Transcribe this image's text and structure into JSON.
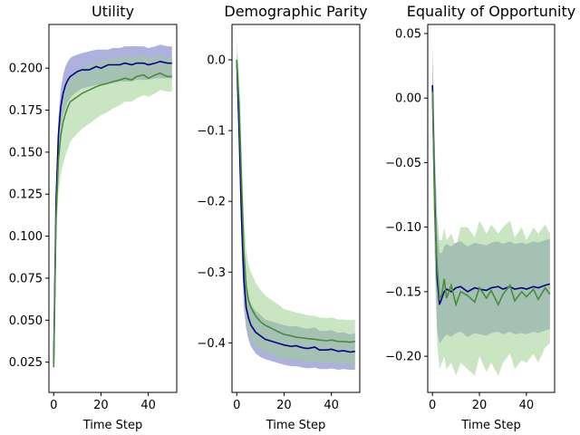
{
  "colors": {
    "blue_line": "#00008b",
    "blue_band": "#8c8fd0",
    "green_line": "#4a8a3a",
    "green_band": "#9fcf8f",
    "axis": "#000000"
  },
  "chart_data": [
    {
      "type": "line",
      "title": "Utility",
      "xlabel": "Time Step",
      "ylabel": "",
      "xlim": [
        -2,
        52
      ],
      "ylim": [
        0.007,
        0.226
      ],
      "xticks": [
        0,
        20,
        40
      ],
      "yticks": [
        0.025,
        0.05,
        0.075,
        0.1,
        0.125,
        0.15,
        0.175,
        0.2
      ],
      "ytick_labels": [
        "0.025",
        "0.050",
        "0.075",
        "0.100",
        "0.125",
        "0.150",
        "0.175",
        "0.200"
      ],
      "grid": false,
      "series": [
        {
          "color": "blue",
          "x": [
            0,
            1,
            2,
            3,
            4,
            5,
            6,
            7,
            8,
            10,
            12,
            15,
            18,
            20,
            23,
            25,
            28,
            30,
            33,
            35,
            38,
            40,
            43,
            45,
            48,
            50
          ],
          "y": [
            0.024,
            0.12,
            0.16,
            0.177,
            0.185,
            0.19,
            0.193,
            0.195,
            0.196,
            0.198,
            0.199,
            0.199,
            0.201,
            0.2,
            0.202,
            0.202,
            0.202,
            0.203,
            0.202,
            0.203,
            0.203,
            0.202,
            0.203,
            0.204,
            0.203,
            0.203
          ],
          "lower": [
            0.015,
            0.11,
            0.15,
            0.165,
            0.172,
            0.176,
            0.18,
            0.182,
            0.184,
            0.186,
            0.188,
            0.189,
            0.19,
            0.19,
            0.191,
            0.191,
            0.192,
            0.192,
            0.192,
            0.193,
            0.193,
            0.193,
            0.194,
            0.194,
            0.194,
            0.194
          ],
          "upper": [
            0.032,
            0.13,
            0.17,
            0.188,
            0.196,
            0.201,
            0.204,
            0.206,
            0.207,
            0.208,
            0.209,
            0.21,
            0.211,
            0.211,
            0.211,
            0.212,
            0.212,
            0.213,
            0.213,
            0.213,
            0.213,
            0.212,
            0.213,
            0.214,
            0.213,
            0.213
          ]
        },
        {
          "color": "green",
          "x": [
            0,
            1,
            2,
            3,
            4,
            5,
            6,
            7,
            8,
            10,
            12,
            15,
            18,
            20,
            23,
            25,
            28,
            30,
            33,
            35,
            38,
            40,
            43,
            45,
            48,
            50
          ],
          "y": [
            0.022,
            0.11,
            0.145,
            0.16,
            0.168,
            0.173,
            0.177,
            0.18,
            0.181,
            0.183,
            0.185,
            0.187,
            0.189,
            0.19,
            0.191,
            0.192,
            0.193,
            0.194,
            0.193,
            0.195,
            0.196,
            0.194,
            0.196,
            0.197,
            0.195,
            0.195
          ],
          "lower": [
            0.018,
            0.095,
            0.125,
            0.137,
            0.143,
            0.148,
            0.152,
            0.156,
            0.158,
            0.161,
            0.164,
            0.167,
            0.17,
            0.172,
            0.174,
            0.176,
            0.178,
            0.18,
            0.18,
            0.182,
            0.184,
            0.183,
            0.185,
            0.187,
            0.186,
            0.186
          ],
          "upper": [
            0.028,
            0.125,
            0.16,
            0.177,
            0.185,
            0.19,
            0.193,
            0.196,
            0.197,
            0.199,
            0.2,
            0.202,
            0.203,
            0.204,
            0.205,
            0.206,
            0.206,
            0.207,
            0.206,
            0.207,
            0.208,
            0.206,
            0.207,
            0.208,
            0.206,
            0.206
          ]
        }
      ]
    },
    {
      "type": "line",
      "title": "Demographic Parity",
      "xlabel": "Time Step",
      "ylabel": "",
      "xlim": [
        -2,
        52
      ],
      "ylim": [
        -0.47,
        0.05
      ],
      "xticks": [
        0,
        20,
        40
      ],
      "yticks": [
        0.0,
        -0.1,
        -0.2,
        -0.3,
        -0.4
      ],
      "ytick_labels": [
        "0.0",
        "−0.1",
        "−0.2",
        "−0.3",
        "−0.4"
      ],
      "grid": false,
      "series": [
        {
          "color": "blue",
          "x": [
            0,
            1,
            2,
            3,
            4,
            5,
            6,
            8,
            10,
            12,
            15,
            18,
            20,
            23,
            25,
            28,
            30,
            33,
            35,
            38,
            40,
            43,
            45,
            48,
            50
          ],
          "y": [
            0.0,
            -0.1,
            -0.22,
            -0.31,
            -0.35,
            -0.365,
            -0.375,
            -0.385,
            -0.39,
            -0.395,
            -0.398,
            -0.401,
            -0.403,
            -0.405,
            -0.404,
            -0.407,
            -0.408,
            -0.406,
            -0.41,
            -0.41,
            -0.409,
            -0.412,
            -0.411,
            -0.413,
            -0.412
          ],
          "lower": [
            -0.01,
            -0.13,
            -0.26,
            -0.35,
            -0.38,
            -0.395,
            -0.405,
            -0.415,
            -0.42,
            -0.423,
            -0.426,
            -0.429,
            -0.431,
            -0.433,
            -0.433,
            -0.435,
            -0.436,
            -0.435,
            -0.437,
            -0.437,
            -0.436,
            -0.438,
            -0.437,
            -0.438,
            -0.438
          ],
          "upper": [
            0.01,
            -0.07,
            -0.18,
            -0.27,
            -0.32,
            -0.335,
            -0.345,
            -0.355,
            -0.36,
            -0.367,
            -0.37,
            -0.373,
            -0.375,
            -0.377,
            -0.376,
            -0.379,
            -0.38,
            -0.378,
            -0.383,
            -0.383,
            -0.382,
            -0.386,
            -0.385,
            -0.388,
            -0.386
          ]
        },
        {
          "color": "green",
          "x": [
            0,
            1,
            2,
            3,
            4,
            5,
            6,
            8,
            10,
            12,
            15,
            18,
            20,
            23,
            25,
            28,
            30,
            33,
            35,
            38,
            40,
            43,
            45,
            48,
            50
          ],
          "y": [
            0.0,
            -0.06,
            -0.17,
            -0.27,
            -0.32,
            -0.34,
            -0.35,
            -0.362,
            -0.37,
            -0.375,
            -0.38,
            -0.385,
            -0.388,
            -0.39,
            -0.392,
            -0.393,
            -0.394,
            -0.395,
            -0.396,
            -0.397,
            -0.396,
            -0.398,
            -0.398,
            -0.399,
            -0.398
          ],
          "lower": [
            -0.03,
            -0.1,
            -0.22,
            -0.32,
            -0.37,
            -0.385,
            -0.395,
            -0.405,
            -0.41,
            -0.413,
            -0.417,
            -0.42,
            -0.422,
            -0.423,
            -0.425,
            -0.425,
            -0.426,
            -0.427,
            -0.428,
            -0.428,
            -0.428,
            -0.429,
            -0.429,
            -0.43,
            -0.43
          ],
          "upper": [
            0.025,
            -0.02,
            -0.12,
            -0.22,
            -0.27,
            -0.29,
            -0.3,
            -0.315,
            -0.325,
            -0.333,
            -0.34,
            -0.347,
            -0.352,
            -0.355,
            -0.357,
            -0.359,
            -0.361,
            -0.362,
            -0.364,
            -0.365,
            -0.364,
            -0.367,
            -0.367,
            -0.368,
            -0.367
          ]
        }
      ]
    },
    {
      "type": "line",
      "title": "Equality of Opportunity",
      "xlabel": "Time Step",
      "ylabel": "",
      "xlim": [
        -2,
        52
      ],
      "ylim": [
        -0.228,
        0.057
      ],
      "xticks": [
        0,
        20,
        40
      ],
      "yticks": [
        0.05,
        0.0,
        -0.05,
        -0.1,
        -0.15,
        -0.2
      ],
      "ytick_labels": [
        "0.05",
        "0.00",
        "−0.05",
        "−0.10",
        "−0.15",
        "−0.20"
      ],
      "grid": false,
      "series": [
        {
          "color": "blue",
          "x": [
            0,
            1,
            2,
            3,
            4,
            5,
            6,
            8,
            10,
            12,
            15,
            18,
            20,
            23,
            25,
            28,
            30,
            33,
            35,
            38,
            40,
            43,
            45,
            48,
            50
          ],
          "y": [
            0.01,
            -0.08,
            -0.14,
            -0.16,
            -0.155,
            -0.15,
            -0.148,
            -0.15,
            -0.147,
            -0.146,
            -0.15,
            -0.147,
            -0.148,
            -0.149,
            -0.147,
            -0.146,
            -0.148,
            -0.146,
            -0.148,
            -0.147,
            -0.148,
            -0.146,
            -0.147,
            -0.145,
            -0.144
          ],
          "lower": [
            -0.02,
            -0.12,
            -0.18,
            -0.19,
            -0.188,
            -0.185,
            -0.183,
            -0.185,
            -0.182,
            -0.181,
            -0.185,
            -0.182,
            -0.183,
            -0.184,
            -0.182,
            -0.181,
            -0.183,
            -0.181,
            -0.183,
            -0.182,
            -0.183,
            -0.181,
            -0.182,
            -0.18,
            -0.179
          ],
          "upper": [
            0.04,
            -0.04,
            -0.1,
            -0.12,
            -0.12,
            -0.115,
            -0.113,
            -0.115,
            -0.112,
            -0.111,
            -0.115,
            -0.112,
            -0.113,
            -0.114,
            -0.112,
            -0.111,
            -0.113,
            -0.111,
            -0.113,
            -0.112,
            -0.113,
            -0.111,
            -0.112,
            -0.11,
            -0.109
          ]
        },
        {
          "color": "green",
          "x": [
            0,
            1,
            2,
            3,
            4,
            5,
            6,
            8,
            10,
            12,
            15,
            18,
            20,
            23,
            25,
            28,
            30,
            33,
            35,
            38,
            40,
            43,
            45,
            48,
            50
          ],
          "y": [
            0.005,
            -0.09,
            -0.13,
            -0.155,
            -0.152,
            -0.14,
            -0.155,
            -0.145,
            -0.16,
            -0.15,
            -0.153,
            -0.158,
            -0.147,
            -0.155,
            -0.149,
            -0.16,
            -0.152,
            -0.145,
            -0.157,
            -0.15,
            -0.154,
            -0.148,
            -0.156,
            -0.147,
            -0.152
          ],
          "lower": [
            -0.02,
            -0.13,
            -0.19,
            -0.21,
            -0.205,
            -0.2,
            -0.21,
            -0.205,
            -0.215,
            -0.205,
            -0.21,
            -0.215,
            -0.2,
            -0.212,
            -0.205,
            -0.215,
            -0.205,
            -0.198,
            -0.21,
            -0.203,
            -0.205,
            -0.198,
            -0.205,
            -0.193,
            -0.19
          ],
          "upper": [
            0.035,
            -0.04,
            -0.09,
            -0.11,
            -0.11,
            -0.1,
            -0.11,
            -0.105,
            -0.115,
            -0.1,
            -0.1,
            -0.108,
            -0.095,
            -0.105,
            -0.098,
            -0.105,
            -0.1,
            -0.095,
            -0.108,
            -0.1,
            -0.11,
            -0.1,
            -0.105,
            -0.098,
            -0.105
          ]
        }
      ]
    }
  ]
}
